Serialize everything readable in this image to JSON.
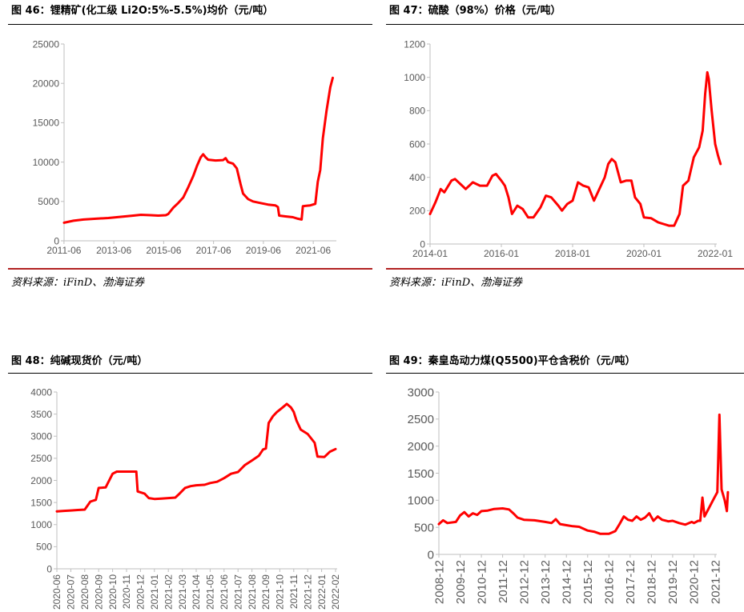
{
  "figures": [
    {
      "title": "图 46：锂精矿(化工级 Li2O:5%-5.5%)均价（元/吨）",
      "source": "资料来源：iFinD、渤海证券"
    },
    {
      "title": "图 47：硫酸（98%）价格（元/吨）",
      "source": "资料来源：iFinD、渤海证券"
    },
    {
      "title": "图 48：纯碱现货价（元/吨）",
      "source": ""
    },
    {
      "title": "图 49：秦皇岛动力煤(Q5500)平仓含税价（元/吨）",
      "source": ""
    }
  ],
  "colors": {
    "line": "#ff0000",
    "axis": "#bfbfbf",
    "tick": "#595959",
    "rule_red": "#b22222"
  },
  "chart_data": [
    {
      "type": "line",
      "title": "",
      "x_tick_labels": [
        "2011-06",
        "2013-06",
        "2015-06",
        "2017-06",
        "2019-06",
        "2021-06"
      ],
      "x_range": [
        2011.42,
        2022.28
      ],
      "ylim": [
        0,
        25000
      ],
      "y_ticks": [
        0,
        5000,
        10000,
        15000,
        20000,
        25000
      ],
      "grid": false,
      "series": [
        {
          "values": [
            [
              2011.42,
              2300
            ],
            [
              2011.8,
              2550
            ],
            [
              2012.2,
              2700
            ],
            [
              2012.7,
              2800
            ],
            [
              2013.2,
              2900
            ],
            [
              2013.7,
              3050
            ],
            [
              2014.2,
              3200
            ],
            [
              2014.5,
              3300
            ],
            [
              2014.9,
              3250
            ],
            [
              2015.2,
              3200
            ],
            [
              2015.5,
              3250
            ],
            [
              2015.6,
              3400
            ],
            [
              2015.8,
              4200
            ],
            [
              2016.0,
              4800
            ],
            [
              2016.2,
              5500
            ],
            [
              2016.4,
              6800
            ],
            [
              2016.6,
              8200
            ],
            [
              2016.75,
              9500
            ],
            [
              2016.9,
              10600
            ],
            [
              2017.0,
              11000
            ],
            [
              2017.1,
              10600
            ],
            [
              2017.2,
              10300
            ],
            [
              2017.5,
              10200
            ],
            [
              2017.8,
              10250
            ],
            [
              2017.9,
              10500
            ],
            [
              2018.0,
              10000
            ],
            [
              2018.2,
              9800
            ],
            [
              2018.35,
              9200
            ],
            [
              2018.5,
              7200
            ],
            [
              2018.6,
              6000
            ],
            [
              2018.8,
              5300
            ],
            [
              2019.0,
              5000
            ],
            [
              2019.3,
              4800
            ],
            [
              2019.6,
              4600
            ],
            [
              2019.9,
              4500
            ],
            [
              2020.0,
              4300
            ],
            [
              2020.05,
              3200
            ],
            [
              2020.3,
              3100
            ],
            [
              2020.6,
              3000
            ],
            [
              2020.8,
              2800
            ],
            [
              2020.95,
              2700
            ],
            [
              2021.0,
              4400
            ],
            [
              2021.3,
              4500
            ],
            [
              2021.5,
              4700
            ],
            [
              2021.6,
              7500
            ],
            [
              2021.7,
              9000
            ],
            [
              2021.8,
              13000
            ],
            [
              2021.95,
              16500
            ],
            [
              2022.1,
              19500
            ],
            [
              2022.2,
              20700
            ]
          ]
        }
      ]
    },
    {
      "type": "line",
      "title": "",
      "x_tick_labels": [
        "2014-01",
        "2016-01",
        "2018-01",
        "2020-01",
        "2022-01"
      ],
      "x_range": [
        2014.0,
        2022.0
      ],
      "ylim": [
        0,
        1200
      ],
      "y_ticks": [
        0,
        200,
        400,
        600,
        800,
        1000,
        1200
      ],
      "grid": false,
      "series": [
        {
          "values": [
            [
              2014.0,
              180
            ],
            [
              2014.15,
              250
            ],
            [
              2014.3,
              330
            ],
            [
              2014.4,
              310
            ],
            [
              2014.6,
              380
            ],
            [
              2014.7,
              390
            ],
            [
              2014.9,
              350
            ],
            [
              2015.0,
              330
            ],
            [
              2015.2,
              370
            ],
            [
              2015.4,
              350
            ],
            [
              2015.6,
              350
            ],
            [
              2015.75,
              410
            ],
            [
              2015.85,
              420
            ],
            [
              2016.0,
              380
            ],
            [
              2016.1,
              350
            ],
            [
              2016.2,
              280
            ],
            [
              2016.3,
              180
            ],
            [
              2016.45,
              230
            ],
            [
              2016.6,
              210
            ],
            [
              2016.75,
              160
            ],
            [
              2016.9,
              160
            ],
            [
              2017.1,
              220
            ],
            [
              2017.25,
              290
            ],
            [
              2017.4,
              280
            ],
            [
              2017.6,
              230
            ],
            [
              2017.7,
              200
            ],
            [
              2017.85,
              240
            ],
            [
              2018.0,
              260
            ],
            [
              2018.15,
              370
            ],
            [
              2018.3,
              350
            ],
            [
              2018.45,
              340
            ],
            [
              2018.6,
              260
            ],
            [
              2018.75,
              330
            ],
            [
              2018.9,
              400
            ],
            [
              2019.0,
              480
            ],
            [
              2019.1,
              510
            ],
            [
              2019.2,
              490
            ],
            [
              2019.35,
              370
            ],
            [
              2019.5,
              380
            ],
            [
              2019.65,
              380
            ],
            [
              2019.75,
              280
            ],
            [
              2019.9,
              240
            ],
            [
              2020.0,
              160
            ],
            [
              2020.2,
              155
            ],
            [
              2020.4,
              130
            ],
            [
              2020.55,
              120
            ],
            [
              2020.7,
              110
            ],
            [
              2020.85,
              110
            ],
            [
              2021.0,
              180
            ],
            [
              2021.1,
              350
            ],
            [
              2021.25,
              380
            ],
            [
              2021.4,
              520
            ],
            [
              2021.55,
              580
            ],
            [
              2021.65,
              680
            ],
            [
              2021.72,
              900
            ],
            [
              2021.78,
              1030
            ],
            [
              2021.82,
              990
            ],
            [
              2021.9,
              800
            ],
            [
              2022.0,
              600
            ],
            [
              2022.08,
              530
            ],
            [
              2022.15,
              480
            ]
          ]
        }
      ]
    },
    {
      "type": "line",
      "title": "",
      "categories": [
        "2020-06",
        "2020-07",
        "2020-08",
        "2020-09",
        "2020-10",
        "2020-11",
        "2020-12",
        "2021-01",
        "2021-02",
        "2021-03",
        "2021-04",
        "2021-05",
        "2021-06",
        "2021-07",
        "2021-08",
        "2021-09",
        "2021-10",
        "2021-11",
        "2021-12",
        "2022-01",
        "2022-02"
      ],
      "ylim": [
        0,
        4000
      ],
      "y_ticks": [
        0,
        500,
        1000,
        1500,
        2000,
        2500,
        3000,
        3500,
        4000
      ],
      "grid": false,
      "series": [
        {
          "values": [
            [
              0,
              1300
            ],
            [
              0.5,
              1310
            ],
            [
              1,
              1320
            ],
            [
              1.5,
              1330
            ],
            [
              2,
              1340
            ],
            [
              2.4,
              1520
            ],
            [
              2.8,
              1560
            ],
            [
              3,
              1830
            ],
            [
              3.5,
              1840
            ],
            [
              4,
              2150
            ],
            [
              4.3,
              2200
            ],
            [
              5,
              2200
            ],
            [
              5.7,
              2200
            ],
            [
              5.8,
              1750
            ],
            [
              6.3,
              1700
            ],
            [
              6.6,
              1600
            ],
            [
              7,
              1580
            ],
            [
              7.5,
              1590
            ],
            [
              8,
              1600
            ],
            [
              8.5,
              1610
            ],
            [
              8.8,
              1700
            ],
            [
              9.2,
              1830
            ],
            [
              9.6,
              1870
            ],
            [
              10,
              1890
            ],
            [
              10.6,
              1900
            ],
            [
              11,
              1940
            ],
            [
              11.5,
              1970
            ],
            [
              12,
              2050
            ],
            [
              12.5,
              2150
            ],
            [
              13,
              2190
            ],
            [
              13.5,
              2350
            ],
            [
              14,
              2450
            ],
            [
              14.5,
              2560
            ],
            [
              14.8,
              2700
            ],
            [
              15,
              2720
            ],
            [
              15.2,
              3300
            ],
            [
              15.5,
              3450
            ],
            [
              15.8,
              3550
            ],
            [
              16.2,
              3650
            ],
            [
              16.5,
              3730
            ],
            [
              16.8,
              3650
            ],
            [
              17,
              3550
            ],
            [
              17.2,
              3350
            ],
            [
              17.5,
              3150
            ],
            [
              18,
              3050
            ],
            [
              18.5,
              2850
            ],
            [
              18.7,
              2540
            ],
            [
              19.2,
              2530
            ],
            [
              19.6,
              2650
            ],
            [
              20,
              2710
            ]
          ]
        }
      ]
    },
    {
      "type": "line",
      "title": "",
      "categories": [
        "2008-12",
        "2009-12",
        "2010-12",
        "2011-12",
        "2012-12",
        "2013-12",
        "2014-12",
        "2015-12",
        "2016-12",
        "2017-12",
        "2018-12",
        "2019-12",
        "2020-12",
        "2021-12"
      ],
      "ylim": [
        0,
        3000
      ],
      "y_ticks": [
        0,
        500,
        1000,
        1500,
        2000,
        2500,
        3000
      ],
      "grid": false,
      "series": [
        {
          "values": [
            [
              0,
              560
            ],
            [
              0.2,
              630
            ],
            [
              0.4,
              580
            ],
            [
              0.8,
              600
            ],
            [
              1.0,
              720
            ],
            [
              1.2,
              780
            ],
            [
              1.4,
              700
            ],
            [
              1.6,
              760
            ],
            [
              1.8,
              730
            ],
            [
              2.0,
              800
            ],
            [
              2.3,
              810
            ],
            [
              2.6,
              840
            ],
            [
              3.0,
              850
            ],
            [
              3.3,
              830
            ],
            [
              3.5,
              760
            ],
            [
              3.7,
              680
            ],
            [
              4.0,
              640
            ],
            [
              4.5,
              630
            ],
            [
              5.0,
              600
            ],
            [
              5.3,
              580
            ],
            [
              5.5,
              650
            ],
            [
              5.7,
              560
            ],
            [
              6.0,
              540
            ],
            [
              6.3,
              520
            ],
            [
              6.6,
              510
            ],
            [
              7.0,
              440
            ],
            [
              7.3,
              420
            ],
            [
              7.6,
              380
            ],
            [
              8.0,
              380
            ],
            [
              8.3,
              430
            ],
            [
              8.5,
              560
            ],
            [
              8.7,
              700
            ],
            [
              8.9,
              640
            ],
            [
              9.1,
              620
            ],
            [
              9.3,
              700
            ],
            [
              9.5,
              640
            ],
            [
              9.7,
              680
            ],
            [
              9.9,
              760
            ],
            [
              10.1,
              620
            ],
            [
              10.3,
              700
            ],
            [
              10.5,
              640
            ],
            [
              10.8,
              610
            ],
            [
              11.0,
              620
            ],
            [
              11.3,
              580
            ],
            [
              11.6,
              550
            ],
            [
              11.9,
              600
            ],
            [
              12.0,
              580
            ],
            [
              12.2,
              620
            ],
            [
              12.3,
              620
            ],
            [
              12.4,
              1050
            ],
            [
              12.5,
              700
            ],
            [
              12.7,
              850
            ],
            [
              12.9,
              1000
            ],
            [
              13.1,
              1150
            ],
            [
              13.2,
              2580
            ],
            [
              13.3,
              1200
            ],
            [
              13.45,
              1000
            ],
            [
              13.55,
              800
            ],
            [
              13.6,
              1150
            ]
          ]
        }
      ]
    }
  ]
}
